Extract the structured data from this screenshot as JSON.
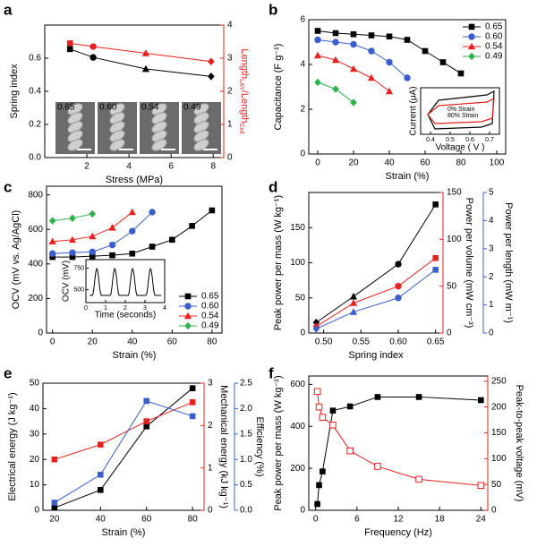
{
  "chart_data": [
    {
      "panel": "a",
      "type": "line",
      "xlabel": "Stress (MPa)",
      "ylabel": "Spring index",
      "y2label": [
        "Length",
        "LAY",
        "/Length",
        "Coil"
      ],
      "xlim": [
        0,
        8.5
      ],
      "xticks": [
        2,
        4,
        6,
        8
      ],
      "ylim": [
        0,
        0.8
      ],
      "yticks": [
        {
          "value": 0,
          "label": "0.0"
        },
        0.2,
        0.4,
        0.6
      ],
      "y2lim": [
        0,
        4
      ],
      "y2ticks": [
        0,
        1,
        2,
        3,
        4
      ],
      "series": [
        {
          "color": "#000000",
          "markers": [
            "square",
            "circle",
            "triangle",
            "diamond"
          ],
          "x": [
            1.2,
            2.3,
            4.8,
            7.9
          ],
          "values": [
            0.655,
            0.605,
            0.535,
            0.49
          ]
        },
        {
          "color": "#e8201f",
          "axis": "y2",
          "markers": [
            "square",
            "circle",
            "triangle",
            "diamond"
          ],
          "x": [
            1.2,
            2.3,
            4.8,
            7.9
          ],
          "values": [
            3.45,
            3.35,
            3.15,
            2.9
          ]
        }
      ],
      "inset": {
        "kind": "images",
        "labels": [
          "0.65",
          "0.60",
          "0.54",
          "0.49"
        ]
      }
    },
    {
      "panel": "b",
      "type": "line",
      "xlabel": "Strain (%)",
      "ylabel": "Capacitance (F g⁻¹)",
      "xlim": [
        -5,
        105
      ],
      "xticks": [
        0,
        20,
        40,
        60,
        80,
        100
      ],
      "ylim": [
        0,
        6
      ],
      "yticks": [
        0,
        2,
        4,
        6
      ],
      "legend": "upper right",
      "series": [
        {
          "name": "0.65",
          "color": "#000000",
          "marker": "square",
          "x": [
            0,
            10,
            20,
            30,
            40,
            50,
            60,
            70,
            80
          ],
          "values": [
            5.5,
            5.4,
            5.35,
            5.3,
            5.25,
            5.1,
            4.6,
            4.1,
            3.6
          ]
        },
        {
          "name": "0.60",
          "color": "#3a5fcd",
          "marker": "circle",
          "x": [
            0,
            10,
            20,
            30,
            40,
            50
          ],
          "values": [
            5.1,
            5.0,
            4.9,
            4.6,
            4.1,
            3.4
          ]
        },
        {
          "name": "0.54",
          "color": "#e8201f",
          "marker": "triangle",
          "x": [
            0,
            10,
            20,
            30,
            40
          ],
          "values": [
            4.4,
            4.2,
            3.8,
            3.4,
            2.8
          ]
        },
        {
          "name": "0.49",
          "color": "#2eb24a",
          "marker": "diamond",
          "x": [
            0,
            10,
            20
          ],
          "values": [
            3.2,
            2.9,
            2.3
          ]
        }
      ],
      "inset": {
        "kind": "cv",
        "xlabel": "Voltage ( V )",
        "ylabel": "Current (μA)",
        "xlim": [
          0.35,
          0.75
        ],
        "xticks": [
          0.4,
          0.5,
          0.6,
          0.7
        ],
        "texts": [
          "0% Strain",
          "80% Strain"
        ]
      }
    },
    {
      "panel": "c",
      "type": "line",
      "xlabel": "Strain (%)",
      "ylabel": "OCV (mV vs. Ag/AgCl)",
      "xlim": [
        -3,
        85
      ],
      "xticks": [
        0,
        20,
        40,
        60,
        80
      ],
      "ylim": [
        0,
        850
      ],
      "yticks": [
        0,
        200,
        400,
        600,
        800
      ],
      "legend": "lower right",
      "series": [
        {
          "name": "0.65",
          "color": "#000000",
          "marker": "square",
          "x": [
            0,
            10,
            20,
            30,
            40,
            50,
            60,
            70,
            80
          ],
          "values": [
            440,
            440,
            445,
            450,
            460,
            500,
            540,
            620,
            710
          ]
        },
        {
          "name": "0.60",
          "color": "#3a5fcd",
          "marker": "circle",
          "x": [
            0,
            10,
            20,
            30,
            40,
            50
          ],
          "values": [
            460,
            465,
            470,
            510,
            590,
            700
          ]
        },
        {
          "name": "0.54",
          "color": "#e8201f",
          "marker": "triangle",
          "x": [
            0,
            10,
            20,
            30,
            40
          ],
          "values": [
            530,
            540,
            560,
            610,
            700
          ]
        },
        {
          "name": "0.49",
          "color": "#2eb24a",
          "marker": "diamond",
          "x": [
            0,
            10,
            20
          ],
          "values": [
            650,
            665,
            690
          ]
        }
      ],
      "inset": {
        "kind": "ocv",
        "xlabel": "Time (seconds)",
        "ylabel": "OCV (mV)",
        "xlim": [
          0,
          4
        ],
        "xticks": [
          0,
          1,
          2,
          3,
          4
        ],
        "ylim": [
          350,
          850
        ],
        "yticks": [
          500,
          750
        ]
      }
    },
    {
      "panel": "d",
      "type": "line",
      "xlabel": "Spring index",
      "ylabel": "Peak power per mass (W kg⁻¹)",
      "y2label": "Power per volume (mW cm⁻³)",
      "y3label": "Power per length (mW m⁻¹)",
      "xlim": [
        0.48,
        0.66
      ],
      "xticks": [
        {
          "value": 0.5,
          "label": "0.50"
        },
        {
          "value": 0.55,
          "label": "0.55"
        },
        {
          "value": 0.6,
          "label": "0.60"
        },
        {
          "value": 0.65,
          "label": "0.65"
        }
      ],
      "ylim": [
        0,
        200
      ],
      "yticks": [
        0,
        50,
        100,
        150
      ],
      "y2lim": [
        0,
        150
      ],
      "y2ticks": [
        0,
        50,
        100,
        150
      ],
      "y3lim": [
        0,
        5
      ],
      "y3ticks": [
        0,
        1,
        2,
        3,
        4,
        5
      ],
      "series": [
        {
          "color": "#000000",
          "markers": [
            "diamond",
            "triangle",
            "circle",
            "square"
          ],
          "x": [
            0.49,
            0.54,
            0.6,
            0.65
          ],
          "values": [
            15,
            52,
            98,
            183
          ]
        },
        {
          "color": "#e8201f",
          "axis": "y2",
          "markers": [
            "diamond",
            "triangle",
            "circle",
            "square"
          ],
          "x": [
            0.49,
            0.54,
            0.6,
            0.65
          ],
          "values": [
            7,
            32,
            50,
            80
          ]
        },
        {
          "color": "#3a5fcd",
          "axis": "y3",
          "markers": [
            "diamond",
            "triangle",
            "circle",
            "square"
          ],
          "x": [
            0.49,
            0.54,
            0.6,
            0.65
          ],
          "values": [
            0.15,
            0.75,
            1.25,
            2.25
          ]
        }
      ]
    },
    {
      "panel": "e",
      "type": "line",
      "xlabel": "Strain (%)",
      "ylabel": "Electrical energy (J kg⁻¹)",
      "y2label": "Mechanical energy (kJ kg⁻¹)",
      "y3label": "Efficiency (%)",
      "xlim": [
        15,
        85
      ],
      "xticks": [
        20,
        40,
        60,
        80
      ],
      "ylim": [
        0,
        50
      ],
      "yticks": [
        0,
        10,
        20,
        30,
        40,
        50
      ],
      "y2lim": [
        0,
        3
      ],
      "y2ticks": [
        0,
        1,
        2,
        3
      ],
      "y3lim": [
        0,
        2.5
      ],
      "y3ticks": [
        {
          "value": 0,
          "label": "0.0"
        },
        0.5,
        {
          "value": 1,
          "label": "1.0"
        },
        1.5,
        {
          "value": 2,
          "label": "2.0"
        },
        2.5
      ],
      "series": [
        {
          "color": "#000000",
          "marker": "square",
          "x": [
            20,
            40,
            60,
            80
          ],
          "values": [
            1,
            8,
            33,
            48
          ]
        },
        {
          "color": "#e8201f",
          "axis": "y2",
          "marker": "square",
          "x": [
            20,
            40,
            60,
            80
          ],
          "values": [
            1.2,
            1.55,
            2.1,
            2.55
          ]
        },
        {
          "color": "#3a5fcd",
          "axis": "y3",
          "marker": "square",
          "x": [
            20,
            40,
            60,
            80
          ],
          "values": [
            0.15,
            0.7,
            2.15,
            1.85
          ]
        }
      ]
    },
    {
      "panel": "f",
      "type": "line",
      "xlabel": "Frequency (Hz)",
      "ylabel": "Peak power per mass (W kg⁻¹)",
      "y2label": "Peak-to-peak voltage (mV)",
      "xlim": [
        -1,
        25
      ],
      "xticks": [
        0,
        6,
        12,
        18,
        24
      ],
      "ylim": [
        0,
        640
      ],
      "yticks": [
        0,
        200,
        400,
        600
      ],
      "y2lim": [
        0,
        260
      ],
      "y2ticks": [
        0,
        50,
        100,
        150,
        200,
        250
      ],
      "series": [
        {
          "color": "#000000",
          "marker": "square",
          "x": [
            0.25,
            0.5,
            1,
            2.5,
            5,
            9,
            15,
            24
          ],
          "values": [
            30,
            120,
            185,
            475,
            495,
            540,
            540,
            525
          ]
        },
        {
          "color": "#e8201f",
          "axis": "y2",
          "marker": "square-open",
          "x": [
            0.25,
            0.5,
            1,
            2.5,
            5,
            9,
            15,
            24
          ],
          "values": [
            230,
            200,
            180,
            165,
            115,
            85,
            60,
            48
          ]
        }
      ]
    }
  ]
}
